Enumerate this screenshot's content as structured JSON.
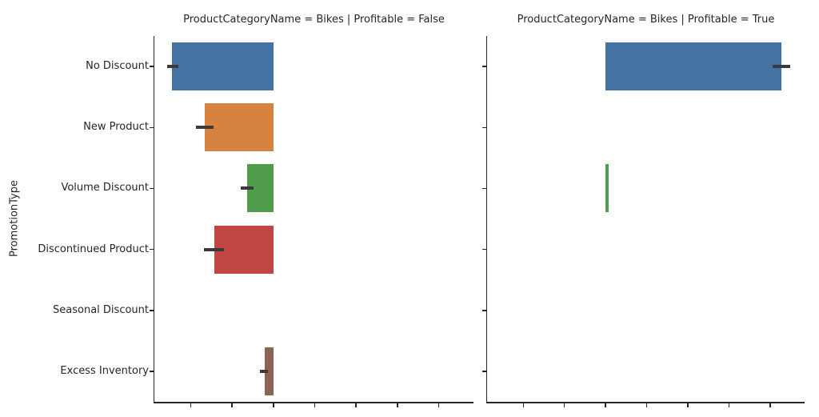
{
  "chart_data": {
    "type": "bar",
    "orientation": "horizontal",
    "ylabel": "PromotionType",
    "xlabel": "",
    "categories": [
      "No Discount",
      "New Product",
      "Volume Discount",
      "Discontinued Product",
      "Seasonal Discount",
      "Excess Inventory"
    ],
    "facets": [
      {
        "title": "ProductCategoryName = Bikes | Profitable = False",
        "values": [
          -2.46,
          -1.66,
          -0.64,
          -1.43,
          null,
          -0.21
        ],
        "ci": [
          [
            -2.57,
            -2.3
          ],
          [
            -1.88,
            -1.45
          ],
          [
            -0.79,
            -0.48
          ],
          [
            -1.68,
            -1.2
          ],
          null,
          [
            -0.33,
            -0.14
          ]
        ]
      },
      {
        "title": "ProductCategoryName = Bikes | Profitable = True",
        "values": [
          4.28,
          null,
          0.07,
          null,
          null,
          null
        ],
        "ci": [
          [
            4.06,
            4.49
          ],
          null,
          null,
          null,
          null,
          null
        ]
      }
    ],
    "xlim": [
      -2.88,
      4.84
    ],
    "xticks": [
      -2,
      -1,
      0,
      1,
      2,
      3,
      4
    ],
    "xtick_labels_visible": false,
    "legend": null,
    "grid": false,
    "bar_colors": [
      "#4472A3",
      "#D8823F",
      "#4F9C4C",
      "#BF4642",
      "#8172B3",
      "#8C6355"
    ],
    "errorbar_color": "#3A3A3A",
    "background_color": "#FFFFFF"
  }
}
